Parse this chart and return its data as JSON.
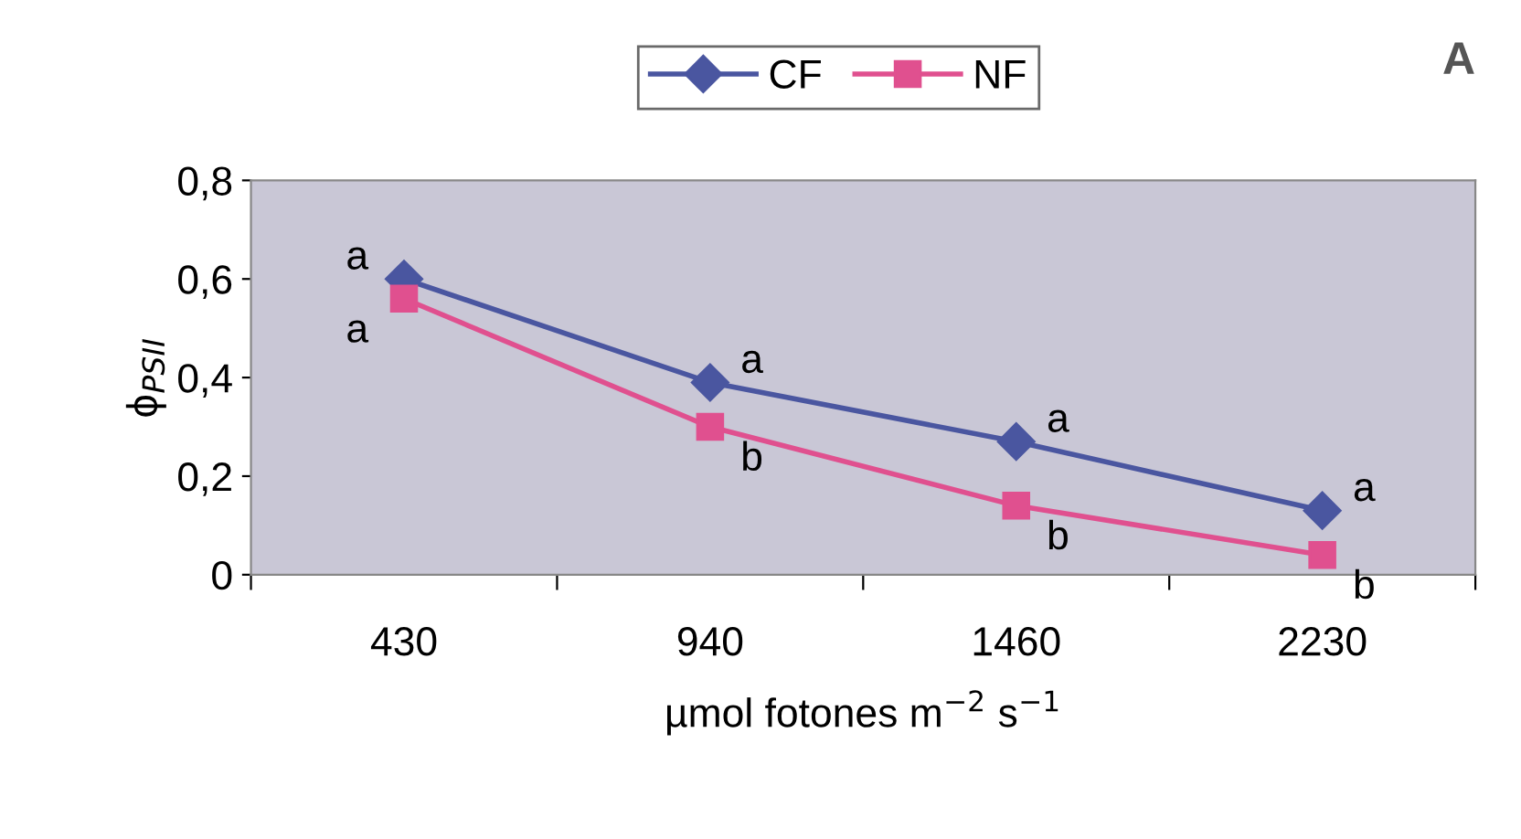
{
  "chart_data": {
    "type": "line",
    "title": "A",
    "xlabel": "µmol fotones m$^{−2}$ s$^{−1}$",
    "ylabel": "ϕ$_{PSII}$",
    "categories": [
      "430",
      "940",
      "1460",
      "2230"
    ],
    "series": [
      {
        "name": "CF",
        "color": "#4a56a0",
        "values": [
          0.6,
          0.39,
          0.27,
          0.13
        ],
        "marker": "diamond"
      },
      {
        "name": "NF",
        "color": "#e0508f",
        "values": [
          0.56,
          0.3,
          0.14,
          0.04
        ],
        "marker": "square"
      }
    ],
    "ylim": [
      0,
      0.8
    ],
    "yticks": [
      {
        "value": 0,
        "label": "0"
      },
      {
        "value": 0.2,
        "label": "0,2"
      },
      {
        "value": 0.4,
        "label": "0,4"
      },
      {
        "value": 0.6,
        "label": "0,6"
      },
      {
        "value": 0.8,
        "label": "0,8"
      }
    ],
    "grid": false,
    "legend": "top",
    "line_style": "solid",
    "annotations": [
      {
        "text": "a",
        "x": "430",
        "y": 0.6
      },
      {
        "text": "a",
        "x": "430",
        "y": 0.56
      },
      {
        "text": "a",
        "x": "940",
        "y": 0.39
      },
      {
        "text": "b",
        "x": "940",
        "y": 0.3
      },
      {
        "text": "a",
        "x": "1460",
        "y": 0.27
      },
      {
        "text": "b",
        "x": "1460",
        "y": 0.14
      },
      {
        "text": "a",
        "x": "2230",
        "y": 0.13
      },
      {
        "text": "b",
        "x": "2230",
        "y": 0.04
      }
    ]
  }
}
